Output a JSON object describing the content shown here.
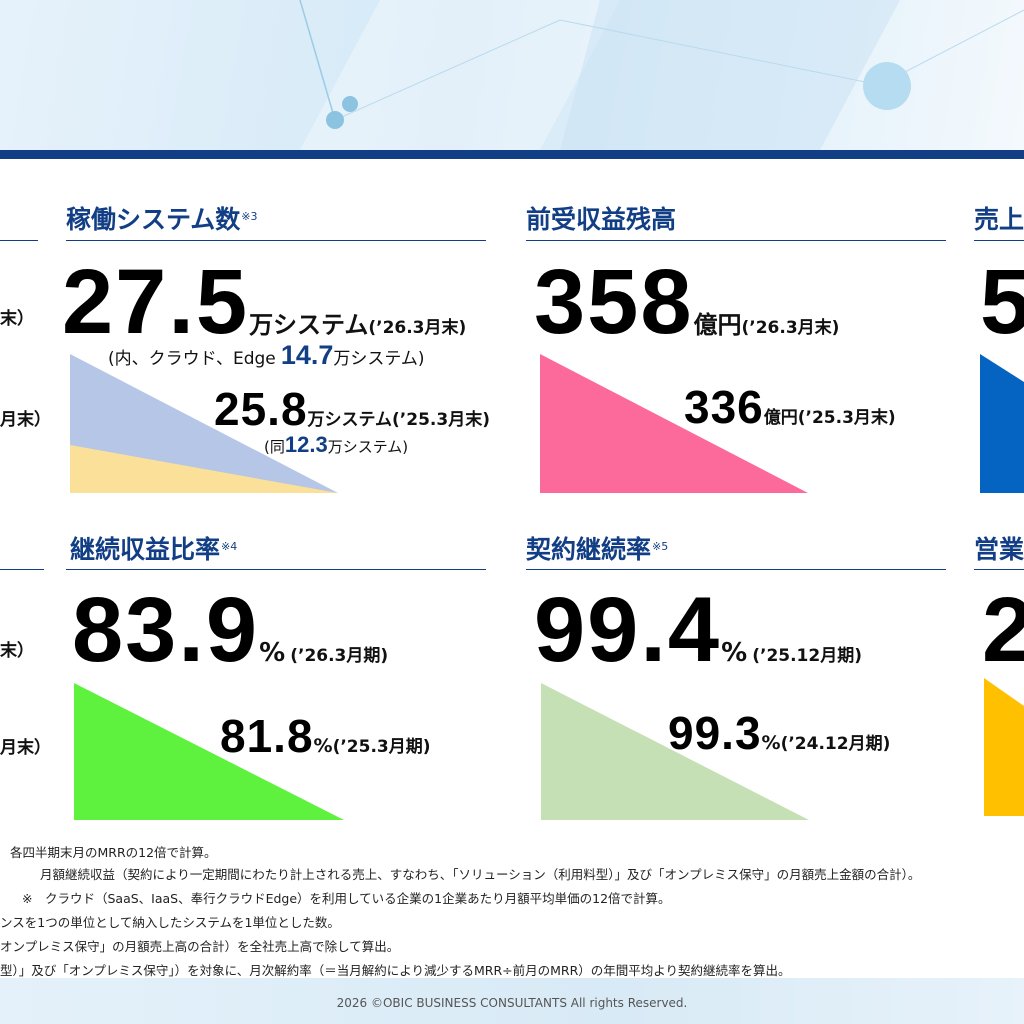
{
  "footer": {
    "copyright": "2026 ©OBIC BUSINESS CONSULTANTS All rights Reserved."
  },
  "left_fragments": {
    "row1_a": "末）",
    "row1_b": "月末）",
    "row2_a": "末）",
    "row2_b": "月末）"
  },
  "cards": {
    "systems": {
      "title": "稼働システム数",
      "note_mark": "※3",
      "value": "27.5",
      "unit": "万システム",
      "period": "(’26.3月末)",
      "sub_prefix": "(内、クラウド、Edge",
      "sub_value": "14.7",
      "sub_unit": "万システム)",
      "prev_value": "25.8",
      "prev_unit": "万システム",
      "prev_period": "(’25.3月末)",
      "prev_sub_prefix": "(同",
      "prev_sub_value": "12.3",
      "prev_sub_unit": "万システム)",
      "colors": {
        "total": "#b5c6e6",
        "cloud": "#fbe09a"
      }
    },
    "deferred": {
      "title": "前受収益残高",
      "value": "358",
      "unit": "億円",
      "period": "(’26.3月末)",
      "prev_value": "336",
      "prev_unit": "億円",
      "prev_period": "(’25.3月末)",
      "color": "#fb6a9a"
    },
    "sales": {
      "title": "売上",
      "value": "5",
      "color": "#0563c1"
    },
    "recurring": {
      "title": "継続収益比率",
      "note_mark": "※4",
      "value": "83.9",
      "unit": "%",
      "period": "(’26.3月期)",
      "prev_value": "81.8",
      "prev_unit": "%",
      "prev_period": "(’25.3月期)",
      "color": "#5ef23e"
    },
    "retention": {
      "title": "契約継続率",
      "note_mark": "※5",
      "value": "99.4",
      "unit": "%",
      "period": "(’25.12月期)",
      "prev_value": "99.3",
      "prev_unit": "%",
      "prev_period": "(’24.12月期)",
      "color": "#c5e0b4"
    },
    "operating": {
      "title": "営業",
      "value": "2",
      "color": "#ffc000"
    }
  },
  "notes": [
    "各四半期末月のMRRの12倍で計算。",
    "月額継続収益（契約により一定期間にわたり計上される売上、すなわち、「ソリューション（利用料型）」及び「オンプレミス保守」の月額売上金額の合計）。",
    "※　クラウド（SaaS、IaaS、奉行クラウドEdge）を利用している企業の1企業あたり月額平均単価の12倍で計算。",
    "ンスを1つの単位として納入したシステムを1単位とした数。",
    "オンプレミス保守」の月額売上高の合計）を全社売上高で除して算出。",
    "型）」及び「オンプレミス保守」）を対象に、月次解約率（＝当月解約により減少するMRR÷前月のMRR）の年間平均より契約継続率を算出。"
  ]
}
